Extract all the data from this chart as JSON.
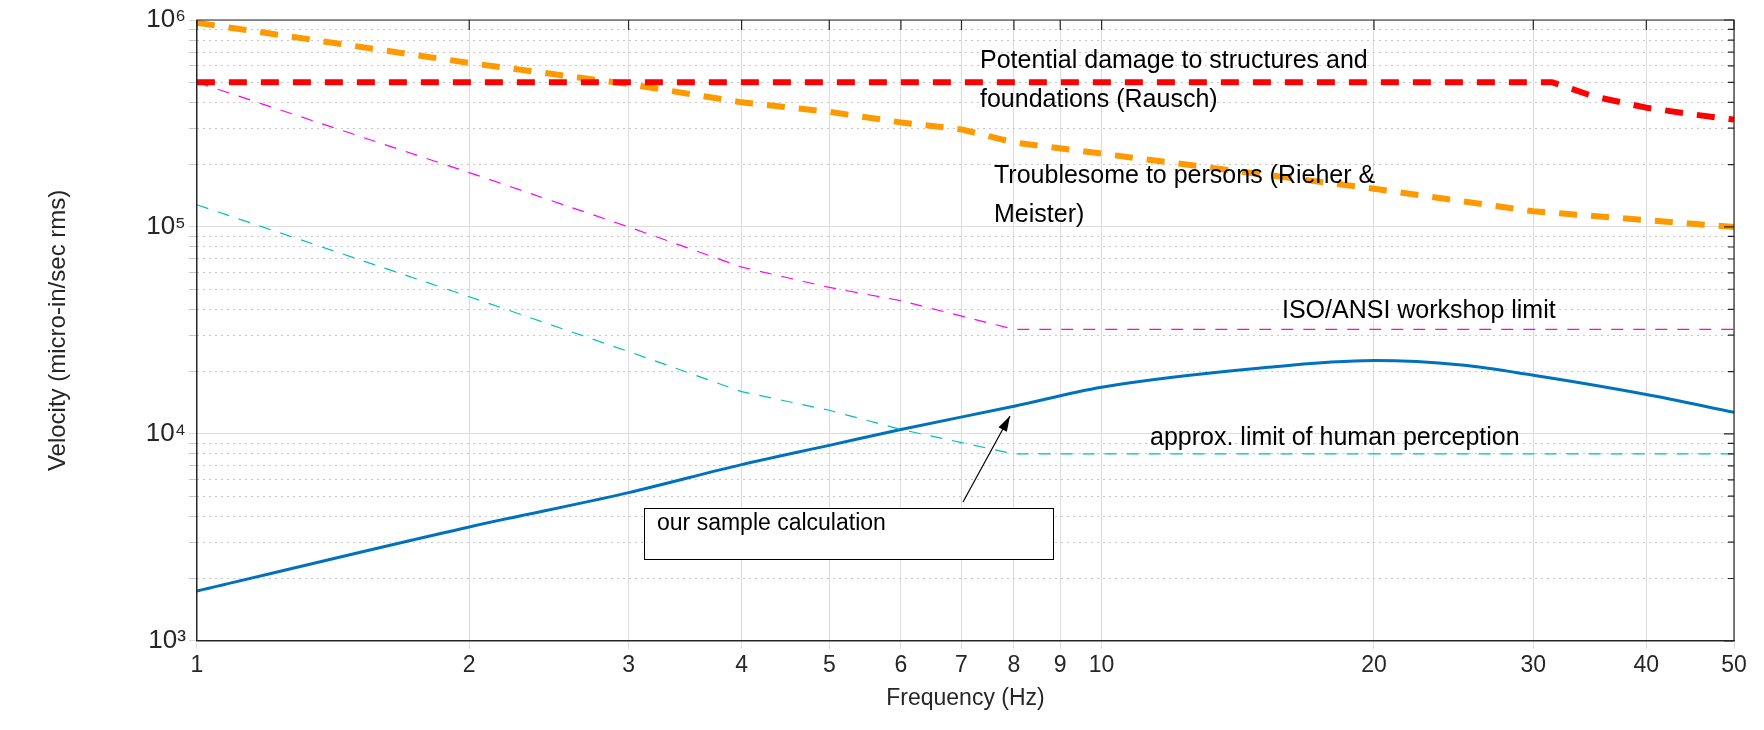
{
  "chart_data": {
    "type": "line",
    "xlabel": "Frequency (Hz)",
    "ylabel": "Velocity (micro-in/sec rms)",
    "log": "xy",
    "grid": true,
    "line_style": "dashed",
    "marker": "none",
    "xlim": [
      1,
      50
    ],
    "xticks": [
      1,
      2,
      3,
      4,
      5,
      6,
      7,
      8,
      9,
      10,
      20,
      30,
      40,
      50
    ],
    "ylim": [
      1000,
      1000000
    ],
    "yticks": [
      {
        "value": 1000,
        "label": "10³"
      },
      {
        "value": 2000,
        "label": null
      },
      {
        "value": 3000,
        "label": null
      },
      {
        "value": 4000,
        "label": null
      },
      {
        "value": 5000,
        "label": null
      },
      {
        "value": 6000,
        "label": null
      },
      {
        "value": 7000,
        "label": null
      },
      {
        "value": 8000,
        "label": null
      },
      {
        "value": 9000,
        "label": null
      },
      {
        "value": 10000,
        "label": "10⁴"
      },
      {
        "value": 20000,
        "label": null
      },
      {
        "value": 30000,
        "label": null
      },
      {
        "value": 40000,
        "label": null
      },
      {
        "value": 50000,
        "label": null
      },
      {
        "value": 60000,
        "label": null
      },
      {
        "value": 70000,
        "label": null
      },
      {
        "value": 80000,
        "label": null
      },
      {
        "value": 90000,
        "label": null
      },
      {
        "value": 100000,
        "label": "10⁵"
      },
      {
        "value": 200000,
        "label": null
      },
      {
        "value": 300000,
        "label": null
      },
      {
        "value": 400000,
        "label": null
      },
      {
        "value": 500000,
        "label": null
      },
      {
        "value": 600000,
        "label": null
      },
      {
        "value": 700000,
        "label": null
      },
      {
        "value": 800000,
        "label": null
      },
      {
        "value": 900000,
        "label": null
      },
      {
        "value": 1000000,
        "label": "10⁶"
      }
    ],
    "series": [
      {
        "color": "#ff0000",
        "x": [
          1,
          31.5,
          35,
          40,
          45,
          50
        ],
        "values": [
          500000,
          500000,
          427000,
          377000,
          350000,
          330000
        ]
      },
      {
        "color": "#ff9900",
        "x": [
          1,
          2,
          3,
          4,
          5,
          6,
          7,
          8,
          10,
          20,
          30,
          50
        ],
        "values": [
          970000,
          620000,
          490000,
          400000,
          360000,
          320000,
          296000,
          256000,
          226000,
          153000,
          119000,
          100000
        ]
      },
      {
        "color": "#ff00ff",
        "x": [
          1,
          2,
          3,
          4,
          5,
          6,
          8,
          50
        ],
        "values": [
          500000,
          183000,
          100000,
          64000,
          51000,
          44000,
          32000,
          32000
        ]
      },
      {
        "color": "#00bfbf",
        "x": [
          1,
          2,
          3,
          4,
          5,
          6,
          8,
          50
        ],
        "values": [
          128000,
          46000,
          25000,
          16000,
          13000,
          10500,
          8000,
          8000
        ]
      },
      {
        "color": "#0072bd",
        "line_style": "solid",
        "x": [
          1,
          2,
          3,
          4,
          5,
          6,
          8,
          10,
          15,
          20,
          25,
          30,
          40,
          50
        ],
        "values": [
          1740,
          3550,
          5200,
          7100,
          8800,
          10500,
          13600,
          16800,
          20800,
          22600,
          21500,
          19200,
          15500,
          12700
        ]
      }
    ],
    "annotations": [
      "Potential damage to structures and foundations (Rausch)",
      "Troublesome to persons (Rieher & Meister)",
      "ISO/ANSI workshop limit",
      "approx. limit of human perception",
      "our sample calculation"
    ]
  }
}
